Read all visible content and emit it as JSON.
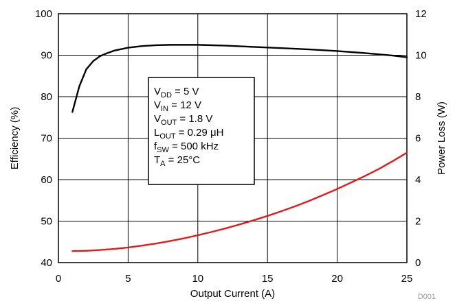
{
  "chart_data": {
    "type": "line",
    "xlabel": "Output Current (A)",
    "ylabel_left": "Efficiency (%)",
    "ylabel_right": "Power Loss (W)",
    "xlim": [
      0,
      25
    ],
    "ylim_left": [
      40,
      100
    ],
    "ylim_right": [
      0,
      12
    ],
    "x_ticks": [
      "0",
      "5",
      "10",
      "15",
      "20",
      "25"
    ],
    "y_left_ticks": [
      "40",
      "50",
      "60",
      "70",
      "80",
      "90",
      "100"
    ],
    "y_right_ticks": [
      "0",
      "2",
      "4",
      "6",
      "8",
      "10",
      "12"
    ],
    "grid": true,
    "series": [
      {
        "axis": "left",
        "color": "#000000",
        "x": [
          1,
          1.5,
          2,
          2.5,
          3,
          3.5,
          4,
          5,
          6,
          7,
          8,
          9,
          10,
          12,
          14,
          16,
          18,
          20,
          22,
          24,
          25
        ],
        "values": [
          76.3,
          82.5,
          86.6,
          88.6,
          89.8,
          90.5,
          91.1,
          91.8,
          92.2,
          92.4,
          92.5,
          92.5,
          92.5,
          92.3,
          92.0,
          91.7,
          91.4,
          91.0,
          90.5,
          89.9,
          89.5
        ]
      },
      {
        "axis": "right",
        "color": "#e31a1c",
        "x": [
          1,
          2,
          3,
          4,
          5,
          6,
          7,
          8,
          9,
          10,
          11,
          12,
          13,
          14,
          15,
          16,
          17,
          18,
          19,
          20,
          21,
          22,
          23,
          24,
          25
        ],
        "values": [
          0.55,
          0.57,
          0.61,
          0.66,
          0.73,
          0.82,
          0.92,
          1.04,
          1.17,
          1.32,
          1.48,
          1.65,
          1.84,
          2.04,
          2.25,
          2.48,
          2.72,
          2.98,
          3.26,
          3.55,
          3.86,
          4.18,
          4.52,
          4.9,
          5.3
        ]
      }
    ],
    "annotation": {
      "lines": [
        {
          "main": "V",
          "sub": "DD",
          "rest": " = 5 V"
        },
        {
          "main": "V",
          "sub": "IN",
          "rest": " = 12 V"
        },
        {
          "main": "V",
          "sub": "OUT",
          "rest": " = 1.8 V"
        },
        {
          "main": "L",
          "sub": "OUT",
          "rest": " = 0.29 μH"
        },
        {
          "main": "f",
          "sub": "SW",
          "rest": " = 500 kHz"
        },
        {
          "main": "T",
          "sub": "A",
          "rest": " = 25°C"
        }
      ]
    },
    "footnote": "D001"
  }
}
